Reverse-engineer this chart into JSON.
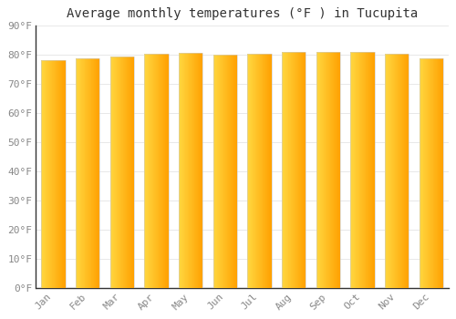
{
  "title": "Average monthly temperatures (°F ) in Tucupita",
  "months": [
    "Jan",
    "Feb",
    "Mar",
    "Apr",
    "May",
    "Jun",
    "Jul",
    "Aug",
    "Sep",
    "Oct",
    "Nov",
    "Dec"
  ],
  "values": [
    78.0,
    78.6,
    79.2,
    80.1,
    80.4,
    80.0,
    80.2,
    80.8,
    81.0,
    81.0,
    80.1,
    78.8
  ],
  "bar_color_left": "#FFD740",
  "bar_color_right": "#FFA000",
  "bar_color_mid": "#FFB300",
  "ylim": [
    0,
    90
  ],
  "yticks": [
    0,
    10,
    20,
    30,
    40,
    50,
    60,
    70,
    80,
    90
  ],
  "ytick_labels": [
    "0°F",
    "10°F",
    "20°F",
    "30°F",
    "40°F",
    "50°F",
    "60°F",
    "70°F",
    "80°F",
    "90°F"
  ],
  "background_color": "#ffffff",
  "plot_bg_color": "#ffffff",
  "grid_color": "#e8e8e8",
  "title_fontsize": 10,
  "tick_fontsize": 8,
  "tick_color": "#888888",
  "font_family": "monospace",
  "bar_width": 0.7,
  "spine_color": "#333333"
}
